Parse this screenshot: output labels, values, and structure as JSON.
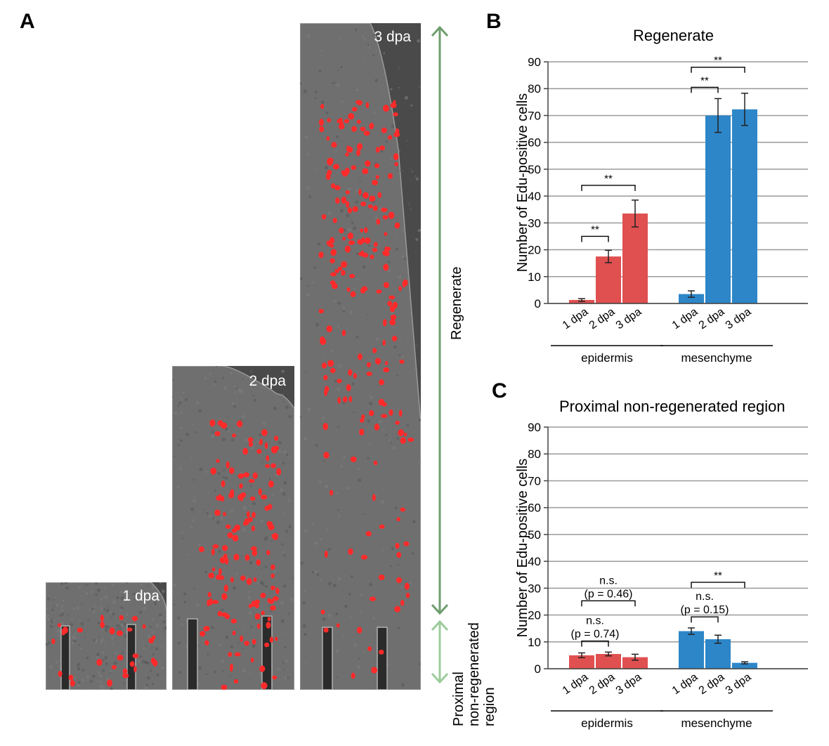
{
  "panel_a": {
    "letter": "A",
    "images": [
      {
        "label": "1 dpa",
        "has_scale_bar": true
      },
      {
        "label": "2 dpa"
      },
      {
        "label": "3 dpa"
      }
    ],
    "regions": [
      "Regenerate",
      "Proximal",
      "non-regenerated",
      "region"
    ],
    "colors": {
      "regenerate_arrow": "#6e9e6e",
      "proximal_arrow": "#9ccc9c",
      "cells": "#ff2a2a"
    }
  },
  "chart_data": [
    {
      "panel": "B",
      "type": "bar",
      "title": "Regenerate",
      "ylabel": "Number of Edu-positive cells",
      "ylim": [
        0,
        90
      ],
      "yticks": [
        0,
        10,
        20,
        30,
        40,
        50,
        60,
        70,
        80,
        90
      ],
      "grid": true,
      "categories": [
        "1 dpa",
        "2 dpa",
        "3 dpa",
        "1 dpa",
        "2 dpa",
        "3 dpa"
      ],
      "groups": [
        {
          "name": "epidermis",
          "color": "#e05050",
          "values": [
            1.3,
            17.5,
            33.5
          ],
          "errors": [
            0.5,
            2.3,
            5.0
          ]
        },
        {
          "name": "mesenchyme",
          "color": "#2d86c8",
          "values": [
            3.5,
            70.0,
            72.3
          ],
          "errors": [
            1.2,
            6.3,
            6.0
          ]
        }
      ],
      "annotations": [
        {
          "from": 0,
          "to": 1,
          "y": 25,
          "lines": [
            "**"
          ]
        },
        {
          "from": 0,
          "to": 2,
          "y": 44,
          "lines": [
            "**"
          ]
        },
        {
          "from": 3,
          "to": 4,
          "y": 80.5,
          "lines": [
            "**"
          ]
        },
        {
          "from": 3,
          "to": 5,
          "y": 88,
          "lines": [
            "**"
          ]
        }
      ]
    },
    {
      "panel": "C",
      "type": "bar",
      "title": "Proximal non-regenerated region",
      "ylabel": "Number of Edu-positive cells",
      "ylim": [
        0,
        90
      ],
      "yticks": [
        0,
        10,
        20,
        30,
        40,
        50,
        60,
        70,
        80,
        90
      ],
      "grid": true,
      "categories": [
        "1 dpa",
        "2 dpa",
        "3 dpa",
        "1 dpa",
        "2 dpa",
        "3 dpa"
      ],
      "groups": [
        {
          "name": "epidermis",
          "color": "#e05050",
          "values": [
            5.0,
            5.5,
            4.3
          ],
          "errors": [
            0.9,
            0.7,
            1.1
          ]
        },
        {
          "name": "mesenchyme",
          "color": "#2d86c8",
          "values": [
            14.0,
            11.0,
            2.2
          ],
          "errors": [
            1.2,
            1.5,
            0.4
          ]
        }
      ],
      "annotations": [
        {
          "from": 0,
          "to": 1,
          "y": 10.3,
          "lines": [
            "n.s.",
            "(p = 0.74)"
          ]
        },
        {
          "from": 0,
          "to": 2,
          "y": 25.3,
          "lines": [
            "n.s.",
            "(p = 0.46)"
          ]
        },
        {
          "from": 3,
          "to": 4,
          "y": 19.3,
          "lines": [
            "n.s.",
            "(p = 0.15)"
          ]
        },
        {
          "from": 3,
          "to": 5,
          "y": 32.2,
          "lines": [
            "**"
          ]
        }
      ]
    }
  ]
}
